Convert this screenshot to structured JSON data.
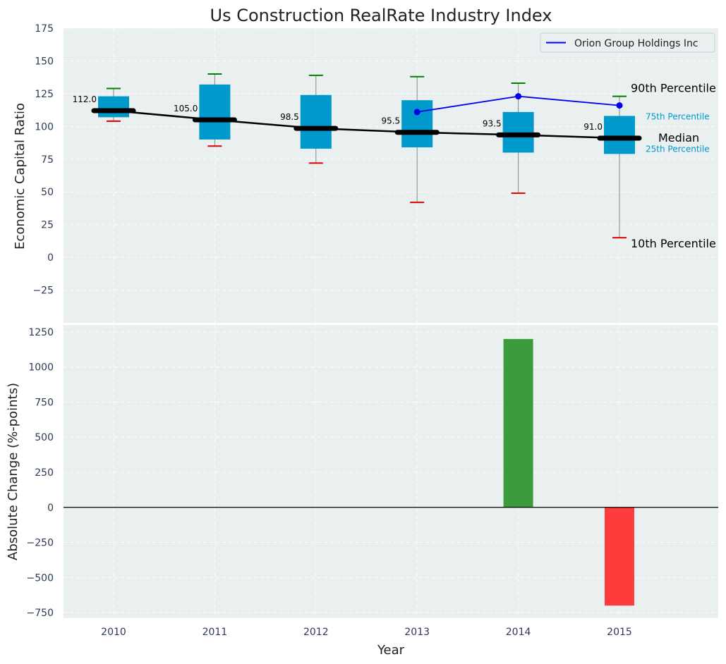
{
  "chart_data": [
    {
      "type": "box",
      "title": "Us Construction RealRate Industry Index",
      "xlabel": "",
      "ylabel": "Economic Capital Ratio",
      "ylim": [
        -50,
        175
      ],
      "yticks": [
        -25,
        0,
        25,
        50,
        75,
        100,
        125,
        150,
        175
      ],
      "ytick_labels": [
        "−25",
        "0",
        "25",
        "50",
        "75",
        "100",
        "125",
        "150",
        "175"
      ],
      "categories": [
        "2010",
        "2011",
        "2012",
        "2013",
        "2014",
        "2015"
      ],
      "boxes": [
        {
          "year": "2010",
          "p10": 104,
          "p25": 107,
          "median": 112.0,
          "p75": 123,
          "p90": 129,
          "median_label": "112.0"
        },
        {
          "year": "2011",
          "p10": 85,
          "p25": 90,
          "median": 105.0,
          "p75": 132,
          "p90": 140,
          "median_label": "105.0"
        },
        {
          "year": "2012",
          "p10": 72,
          "p25": 83,
          "median": 98.5,
          "p75": 124,
          "p90": 139,
          "median_label": "98.5"
        },
        {
          "year": "2013",
          "p10": 42,
          "p25": 84,
          "median": 95.5,
          "p75": 120,
          "p90": 138,
          "median_label": "95.5"
        },
        {
          "year": "2014",
          "p10": 49,
          "p25": 80,
          "median": 93.5,
          "p75": 111,
          "p90": 133,
          "median_label": "93.5"
        },
        {
          "year": "2015",
          "p10": 15,
          "p25": 79,
          "median": 91.0,
          "p75": 108,
          "p90": 123,
          "median_label": "91.0"
        }
      ],
      "company_series": {
        "name": "Orion Group Holdings Inc",
        "color": "#0000ee",
        "points": [
          {
            "year": "2013",
            "value": 111
          },
          {
            "year": "2014",
            "value": 123
          },
          {
            "year": "2015",
            "value": 116
          }
        ]
      },
      "annotations": {
        "p90": "90th Percentile",
        "p75": "75th Percentile",
        "median": "Median",
        "p25": "25th Percentile",
        "p10": "10th Percentile"
      },
      "legend": {
        "position": "top-right",
        "entries": [
          "Orion Group Holdings Inc"
        ]
      },
      "grid": true,
      "colors": {
        "box": "#0099cc",
        "p90_cap": "#008000",
        "p10_cap": "#dd0000",
        "median": "#000000",
        "whisker": "#888888",
        "background": "#eaeff0"
      }
    },
    {
      "type": "bar",
      "xlabel": "Year",
      "ylabel": "Absolute Change (%-points)",
      "ylim": [
        -790,
        1300
      ],
      "yticks": [
        -750,
        -500,
        -250,
        0,
        250,
        500,
        750,
        1000,
        1250
      ],
      "ytick_labels": [
        "−750",
        "−500",
        "−250",
        "0",
        "250",
        "500",
        "750",
        "1000",
        "1250"
      ],
      "categories": [
        "2010",
        "2011",
        "2012",
        "2013",
        "2014",
        "2015"
      ],
      "values": [
        null,
        null,
        null,
        null,
        1200,
        -700
      ],
      "grid": true,
      "colors": {
        "positive": "#3c9c3c",
        "negative": "#ff3c3c",
        "background": "#eaeff0"
      }
    }
  ]
}
